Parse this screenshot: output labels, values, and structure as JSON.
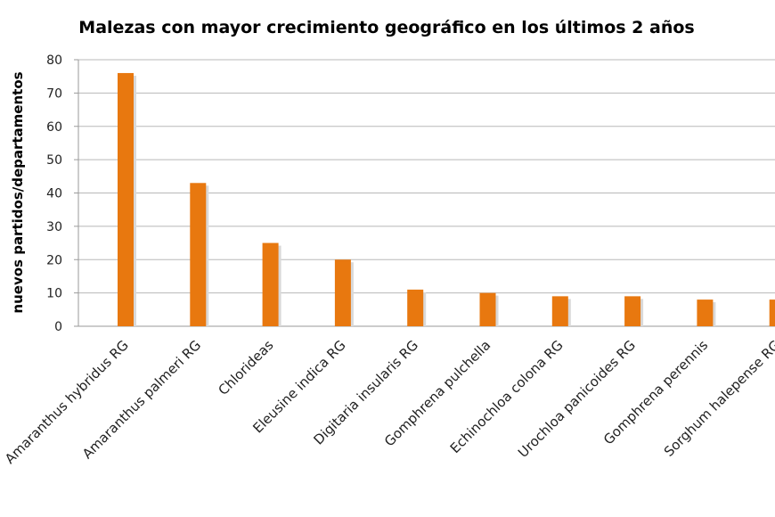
{
  "chart_data": {
    "type": "bar",
    "title": "Malezas con mayor crecimiento geográfico en los últimos 2 años",
    "xlabel": "",
    "ylabel": "nuevos partidos/departamentos",
    "ylim": [
      0,
      80
    ],
    "yticks": [
      0,
      10,
      20,
      30,
      40,
      50,
      60,
      70,
      80
    ],
    "grid": true,
    "legend": "none",
    "bar_color": "#E8780F",
    "categories": [
      "Amaranthus hybridus RG",
      "Amaranthus palmeri RG",
      "Chlorideas",
      "Eleusine indica RG",
      "Digitaria insularis RG",
      "Gomphrena pulchella",
      "Echinochloa colona RG",
      "Urochloa panicoides RG",
      "Gomphrena perennis",
      "Sorghum halepense RG"
    ],
    "values": [
      76,
      43,
      25,
      20,
      11,
      10,
      9,
      9,
      8,
      8
    ]
  }
}
